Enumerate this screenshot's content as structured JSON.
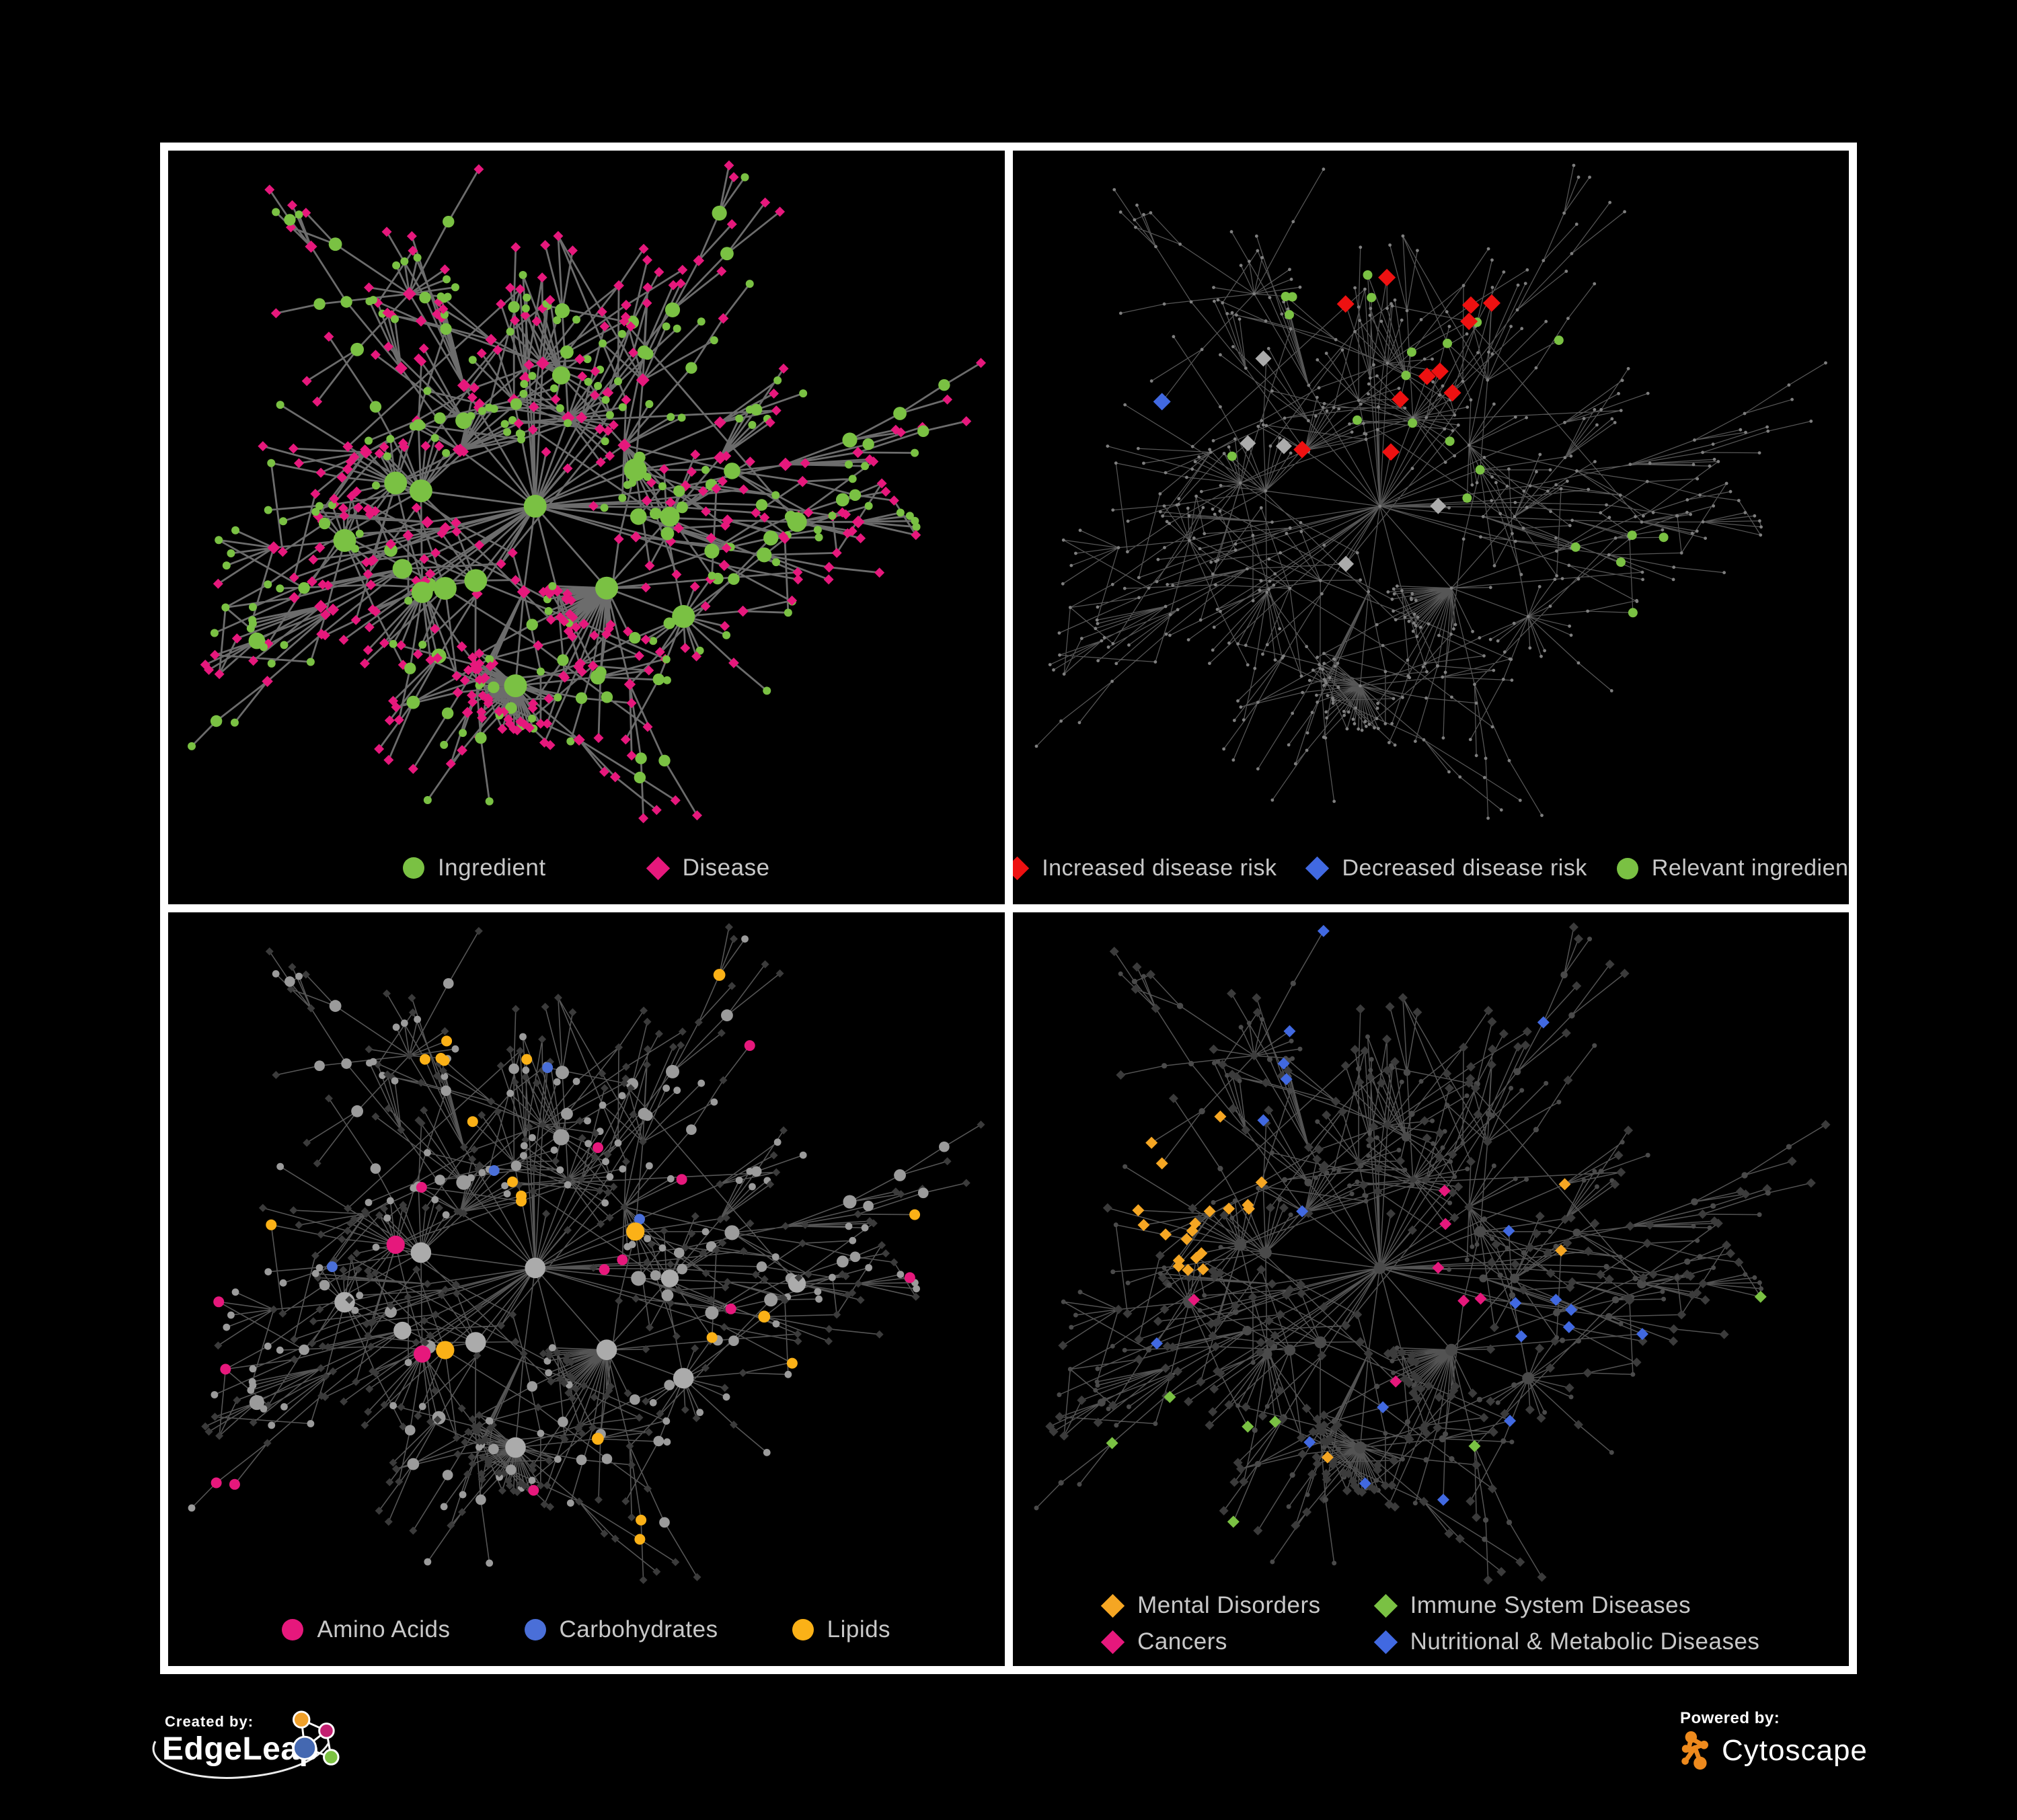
{
  "figure": {
    "background": "#000000",
    "frame_color": "#FFFFFF",
    "legend_text_color": "#C8C8C8"
  },
  "panels": [
    {
      "name": "ingredient-disease-network",
      "legend": [
        {
          "shape": "circle",
          "color": "#7AC143",
          "label": "Ingredient"
        },
        {
          "shape": "diamond",
          "color": "#E6187C",
          "label": "Disease"
        }
      ]
    },
    {
      "name": "disease-risk-network",
      "legend": [
        {
          "shape": "diamond",
          "color": "#EE1111",
          "label": "Increased disease risk"
        },
        {
          "shape": "diamond",
          "color": "#4169E1",
          "label": "Decreased disease risk"
        },
        {
          "shape": "circle",
          "color": "#7AC143",
          "label": "Relevant ingredient"
        }
      ]
    },
    {
      "name": "macronutrient-network",
      "legend": [
        {
          "shape": "circle",
          "color": "#E6187C",
          "label": "Amino Acids"
        },
        {
          "shape": "circle",
          "color": "#4A6FD8",
          "label": "Carbohydrates"
        },
        {
          "shape": "circle",
          "color": "#FBB117",
          "label": "Lipids"
        }
      ]
    },
    {
      "name": "disease-category-network",
      "legend": [
        {
          "shape": "diamond",
          "color": "#F5A623",
          "label": "Mental Disorders"
        },
        {
          "shape": "diamond",
          "color": "#7AC143",
          "label": "Immune System Diseases"
        },
        {
          "shape": "diamond",
          "color": "#E6187C",
          "label": "Cancers"
        },
        {
          "shape": "diamond",
          "color": "#4169E1",
          "label": "Nutritional & Metabolic Diseases"
        }
      ]
    }
  ],
  "network_style": {
    "edge_colors": [
      "#7B7B7B",
      "#5F5F5F",
      "#6A6A6A",
      "#686868"
    ],
    "neutral_node_gray": "#9B9B9B",
    "hub_node_gray": "#ABABAB",
    "dim_node_gray": "#4A4A4A",
    "dark_diamond_gray": "#3B3B3B",
    "tiny_dot_gray": "#7F7F7F",
    "silver_diamond": "#ABABAB"
  },
  "footer": {
    "created_by_label": "Created by:",
    "created_by_brand": "EdgeLeap",
    "powered_by_label": "Powered by:",
    "powered_by_brand": "Cytoscape",
    "edgeleap_node_colors": [
      "#EFA02B",
      "#C21F70",
      "#4468B1",
      "#7CC242"
    ],
    "cytoscape_color": "#EE8A1D"
  }
}
